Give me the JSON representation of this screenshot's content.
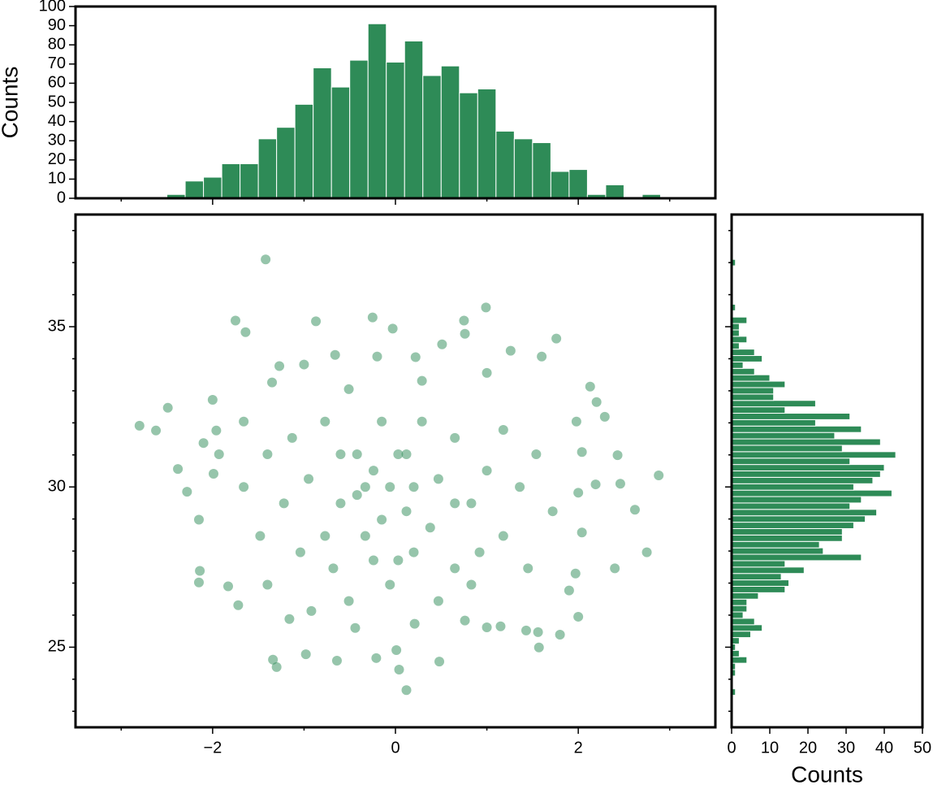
{
  "chart_data": [
    {
      "type": "histogram",
      "orientation": "vertical",
      "color": "#2e8b57",
      "edgecolor": "#ffffff",
      "ylabel": "Counts",
      "bins": [
        -2.5,
        -2.3,
        -2.1,
        -1.9,
        -1.7,
        -1.5,
        -1.3,
        -1.1,
        -0.9,
        -0.7,
        -0.5,
        -0.3,
        -0.1,
        0.1,
        0.3,
        0.5,
        0.7,
        0.9,
        1.1,
        1.3,
        1.5,
        1.7,
        1.9,
        2.1,
        2.3,
        2.5,
        2.7,
        2.9
      ],
      "counts": [
        2,
        9,
        11,
        18,
        18,
        31,
        37,
        49,
        68,
        58,
        72,
        91,
        71,
        82,
        64,
        69,
        55,
        57,
        35,
        31,
        29,
        14,
        15,
        2,
        7,
        0,
        2
      ],
      "xlim": [
        -3.5,
        3.5
      ],
      "ylim": [
        0,
        100
      ],
      "xticks": [
        -2,
        0,
        2
      ],
      "xticks_minor": [
        -3,
        -1,
        1,
        3
      ],
      "show_xticklabels": false,
      "yticks": [
        0,
        10,
        20,
        30,
        40,
        50,
        60,
        70,
        80,
        90,
        100
      ]
    },
    {
      "type": "scatter",
      "color": "#2e8b57",
      "alpha": 0.5,
      "x": [
        -1.42,
        0.99,
        -0.25,
        -1.75,
        0.75,
        -0.87,
        -0.03,
        -1.64,
        1.76,
        -2.8,
        -2.62,
        -2.49,
        -2.38,
        -2.28,
        -2.15,
        -2.14,
        -2.15,
        -1.72,
        -1.83,
        2.88,
        2.75,
        2.62,
        2.4,
        2.43,
        2.46,
        2.13,
        2.29,
        2.2,
        2.0,
        1.8,
        1.56,
        1.57,
        0.12,
        0.04,
        0.01,
        0.48,
        -0.21,
        -0.64,
        -0.98,
        -1.3,
        -1.34,
        -1.16,
        -0.92,
        -0.44,
        0.21,
        0.76,
        1.0,
        1.15,
        1.43,
        2.19,
        2.04,
        1.98,
        2.0,
        2.04,
        1.9,
        1.97,
        1.6,
        1.26,
        0.76,
        0.51,
        0.22,
        -0.66,
        -0.2,
        -1.0,
        -1.27,
        -1.35,
        -2.0,
        -1.96,
        -2.1,
        -1.99,
        -1.93,
        -1.66,
        -1.4,
        -1.13,
        -0.95,
        -0.77,
        -0.6,
        -0.42,
        -0.24,
        -0.15,
        -0.06,
        0.12,
        0.29,
        0.47,
        0.65,
        0.83,
        1.0,
        1.18,
        1.36,
        1.54,
        1.72,
        -1.22,
        -1.48,
        -1.04,
        -0.68,
        -0.33,
        0.03,
        0.2,
        0.38,
        0.65,
        0.92,
        1.18,
        1.45,
        -0.51,
        0.29,
        1.0,
        -1.66,
        -1.4,
        -0.51,
        -0.06,
        0.47,
        0.83,
        -0.42,
        -0.15,
        0.12,
        -0.33,
        0.2,
        0.03,
        -0.6,
        0.65,
        -0.24,
        -0.77
      ],
      "y": [
        37.1,
        35.6,
        35.29,
        35.19,
        35.19,
        35.17,
        34.94,
        34.83,
        34.63,
        31.91,
        31.76,
        32.47,
        30.56,
        29.85,
        28.98,
        27.38,
        27.02,
        26.31,
        26.9,
        30.36,
        27.96,
        29.29,
        27.46,
        30.99,
        30.1,
        33.13,
        32.19,
        32.65,
        25.95,
        25.39,
        25.47,
        24.99,
        23.66,
        24.3,
        24.91,
        24.55,
        24.66,
        24.58,
        24.78,
        24.38,
        24.61,
        25.88,
        26.13,
        25.6,
        25.73,
        25.83,
        25.62,
        25.65,
        25.52,
        30.08,
        31.09,
        32.04,
        29.82,
        28.58,
        26.77,
        27.3,
        34.07,
        34.25,
        34.78,
        34.45,
        34.05,
        34.12,
        34.07,
        33.82,
        33.77,
        33.26,
        32.72,
        31.76,
        31.37,
        30.41,
        31.02,
        32.04,
        31.02,
        31.53,
        30.25,
        32.04,
        31.02,
        29.75,
        30.51,
        28.98,
        30.0,
        31.02,
        32.04,
        30.25,
        31.53,
        29.49,
        30.51,
        31.78,
        30.0,
        31.02,
        29.24,
        29.49,
        28.47,
        27.96,
        27.46,
        28.47,
        27.71,
        27.96,
        28.73,
        27.46,
        27.96,
        28.47,
        27.46,
        33.05,
        33.31,
        33.56,
        30.0,
        26.95,
        26.44,
        26.95,
        26.44,
        26.95,
        31.02,
        32.04,
        29.24,
        30.0,
        30.0,
        31.02,
        29.49,
        29.49,
        27.71,
        28.47
      ],
      "xlim": [
        -3.5,
        3.5
      ],
      "ylim": [
        22.5,
        38.5
      ],
      "xticks": [
        {
          "value": -2,
          "label": "−2"
        },
        0,
        2
      ],
      "xticks_minor": [
        -3,
        -1,
        1,
        3
      ],
      "yticks": [
        25,
        30,
        35
      ],
      "yticks_minor": [
        23,
        24,
        26,
        27,
        28,
        29,
        31,
        32,
        33,
        34,
        36,
        37,
        38
      ]
    },
    {
      "type": "histogram",
      "orientation": "horizontal",
      "color": "#2e8b57",
      "edgecolor": "#ffffff",
      "xlabel": "Counts",
      "bins": [
        23.5,
        23.7,
        23.9,
        24.1,
        24.3,
        24.5,
        24.7,
        24.9,
        25.1,
        25.3,
        25.5,
        25.7,
        25.9,
        26.1,
        26.3,
        26.5,
        26.7,
        26.9,
        27.1,
        27.3,
        27.5,
        27.7,
        27.9,
        28.1,
        28.3,
        28.5,
        28.7,
        28.9,
        29.1,
        29.3,
        29.5,
        29.7,
        29.9,
        30.1,
        30.3,
        30.5,
        30.7,
        30.9,
        31.1,
        31.3,
        31.5,
        31.7,
        31.9,
        32.1,
        32.3,
        32.5,
        32.7,
        32.9,
        33.1,
        33.3,
        33.5,
        33.7,
        33.9,
        34.1,
        34.3,
        34.5,
        34.7,
        34.9,
        35.1,
        35.3,
        35.5,
        35.7,
        35.9,
        36.1,
        36.3,
        36.5,
        36.7,
        36.9,
        37.1
      ],
      "counts": [
        1,
        0,
        0,
        1,
        1,
        4,
        2,
        1,
        2,
        5,
        8,
        6,
        3,
        4,
        4,
        7,
        14,
        15,
        13,
        19,
        14,
        34,
        24,
        23,
        29,
        29,
        32,
        35,
        38,
        31,
        34,
        42,
        32,
        37,
        39,
        40,
        31,
        43,
        29,
        39,
        27,
        34,
        22,
        31,
        14,
        22,
        11,
        11,
        14,
        10,
        6,
        3,
        8,
        6,
        2,
        4,
        2,
        2,
        4,
        0,
        1,
        0,
        0,
        0,
        0,
        0,
        0,
        1
      ],
      "xlim": [
        0,
        50
      ],
      "ylim": [
        22.5,
        38.5
      ],
      "xticks": [
        0,
        10,
        20,
        30,
        40,
        50
      ],
      "yticks": [
        25,
        30,
        35
      ],
      "yticks_minor": [
        23,
        24,
        26,
        27,
        28,
        29,
        31,
        32,
        33,
        34,
        36,
        37,
        38
      ],
      "show_yticklabels": false
    }
  ]
}
